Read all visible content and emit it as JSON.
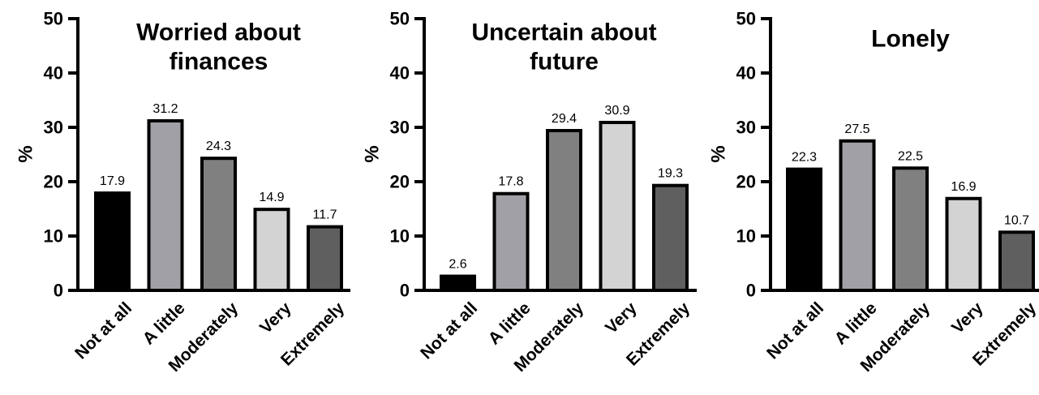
{
  "chart_data": [
    {
      "type": "bar",
      "title_lines": [
        "Worried about",
        "finances"
      ],
      "ylabel": "%",
      "xlabel": "",
      "ylim": [
        0,
        50
      ],
      "yticks": [
        0,
        10,
        20,
        30,
        40,
        50
      ],
      "categories": [
        "Not at all",
        "A little",
        "Moderately",
        "Very",
        "Extremely"
      ],
      "values": [
        17.9,
        31.2,
        24.3,
        14.9,
        11.7
      ],
      "data_labels": [
        "17.9",
        "31.2",
        "24.3",
        "14.9",
        "11.7"
      ],
      "bar_colors": [
        "#000000",
        "#a0a0a6",
        "#808080",
        "#d3d3d3",
        "#5f5f5f"
      ],
      "grid": false,
      "legend": "none"
    },
    {
      "type": "bar",
      "title_lines": [
        "Uncertain about",
        "future"
      ],
      "ylabel": "%",
      "xlabel": "",
      "ylim": [
        0,
        50
      ],
      "yticks": [
        0,
        10,
        20,
        30,
        40,
        50
      ],
      "categories": [
        "Not at all",
        "A little",
        "Moderately",
        "Very",
        "Extremely"
      ],
      "values": [
        2.6,
        17.8,
        29.4,
        30.9,
        19.3
      ],
      "data_labels": [
        "2.6",
        "17.8",
        "29.4",
        "30.9",
        "19.3"
      ],
      "bar_colors": [
        "#000000",
        "#a0a0a6",
        "#808080",
        "#d3d3d3",
        "#5f5f5f"
      ],
      "grid": false,
      "legend": "none"
    },
    {
      "type": "bar",
      "title_lines": [
        "Lonely"
      ],
      "ylabel": "%",
      "xlabel": "",
      "ylim": [
        0,
        50
      ],
      "yticks": [
        0,
        10,
        20,
        30,
        40,
        50
      ],
      "categories": [
        "Not at all",
        "A little",
        "Moderately",
        "Very",
        "Extremely"
      ],
      "values": [
        22.3,
        27.5,
        22.5,
        16.9,
        10.7
      ],
      "data_labels": [
        "22.3",
        "27.5",
        "22.5",
        "16.9",
        "10.7"
      ],
      "bar_colors": [
        "#000000",
        "#a0a0a6",
        "#808080",
        "#d3d3d3",
        "#5f5f5f"
      ],
      "grid": false,
      "legend": "none"
    }
  ]
}
